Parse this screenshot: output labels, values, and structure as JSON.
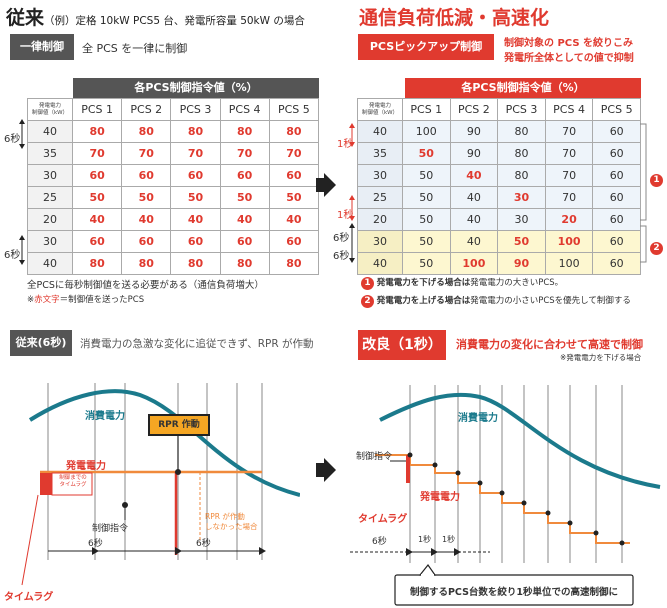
{
  "left": {
    "title": "従来",
    "subtitle": "（例）定格 10kW PCS5 台、発電所容量 50kW の場合",
    "tag": "一律制御",
    "tag_note": "全 PCS を一律に制御",
    "table_header": "各PCS制御指令値（%）",
    "row_label_lines": [
      "発電電力",
      "制御値（kW）"
    ],
    "columns": [
      "PCS 1",
      "PCS 2",
      "PCS 3",
      "PCS 4",
      "PCS 5"
    ],
    "rows": [
      {
        "kw": "40",
        "values": [
          "80",
          "80",
          "80",
          "80",
          "80"
        ]
      },
      {
        "kw": "35",
        "values": [
          "70",
          "70",
          "70",
          "70",
          "70"
        ]
      },
      {
        "kw": "30",
        "values": [
          "60",
          "60",
          "60",
          "60",
          "60"
        ]
      },
      {
        "kw": "25",
        "values": [
          "50",
          "50",
          "50",
          "50",
          "50"
        ]
      },
      {
        "kw": "20",
        "values": [
          "40",
          "40",
          "40",
          "40",
          "40"
        ]
      },
      {
        "kw": "30",
        "values": [
          "60",
          "60",
          "60",
          "60",
          "60"
        ]
      },
      {
        "kw": "40",
        "values": [
          "80",
          "80",
          "80",
          "80",
          "80"
        ]
      }
    ],
    "side_top": "6秒",
    "side_bottom": "6秒",
    "note1": "全PCSに毎秒制御値を送る必要がある（通信負荷増大）",
    "note2_prefix": "※",
    "note2_red": "赤文字",
    "note2_rest": "＝制御値を送ったPCS"
  },
  "right": {
    "title": "通信負荷低減・高速化",
    "tag": "PCSピックアップ制御",
    "tag_note_line1": "制御対象の PCS を絞りこみ",
    "tag_note_line2": "発電所全体としての値で抑制",
    "table_header": "各PCS制御指令値（%）",
    "row_label_lines": [
      "発電電力",
      "制御値（kW）"
    ],
    "columns": [
      "PCS 1",
      "PCS 2",
      "PCS 3",
      "PCS 4",
      "PCS 5"
    ],
    "rows": [
      {
        "kw": "40",
        "values": [
          "100",
          "90",
          "80",
          "70",
          "60"
        ],
        "red": []
      },
      {
        "kw": "35",
        "values": [
          "50",
          "90",
          "80",
          "70",
          "60"
        ],
        "red": [
          0
        ]
      },
      {
        "kw": "30",
        "values": [
          "50",
          "40",
          "80",
          "70",
          "60"
        ],
        "red": [
          1
        ]
      },
      {
        "kw": "25",
        "values": [
          "50",
          "40",
          "30",
          "70",
          "60"
        ],
        "red": [
          2
        ]
      },
      {
        "kw": "20",
        "values": [
          "50",
          "40",
          "30",
          "20",
          "60"
        ],
        "red": [
          3
        ]
      },
      {
        "kw": "30",
        "values": [
          "50",
          "40",
          "50",
          "100",
          "60"
        ],
        "red": [
          2,
          3
        ]
      },
      {
        "kw": "40",
        "values": [
          "50",
          "100",
          "90",
          "100",
          "60"
        ],
        "red": [
          1,
          2
        ]
      }
    ],
    "side_1": "1秒",
    "side_2": "1秒",
    "side_3": "6秒",
    "side_4": "6秒",
    "badge1": "1",
    "badge2": "2",
    "legend1_bold": "発電電力を下げる場合は",
    "legend1_rest": "発電電力の大きいPCS。",
    "legend2_bold": "発電電力を上げる場合は",
    "legend2_rest": "発電電力の小さいPCSを優先して制御する"
  },
  "bottom_left": {
    "tag": "従来(6秒)",
    "note": "消費電力の急激な変化に追従できず、RPR が作動",
    "consumption": "消費電力",
    "generation": "発電電力",
    "rpr": "RPR 作動",
    "lag_box_1": "制御までの",
    "lag_box_2": "タイムラグ",
    "rpr_note_1": "RPR が作動",
    "rpr_note_2": "しなかった場合",
    "command": "制御指令",
    "sec1": "6秒",
    "sec2": "6秒",
    "timelag": "タイムラグ"
  },
  "bottom_right": {
    "tag": "改良（1秒）",
    "note": "消費電力の変化に合わせて高速で制御",
    "subnote": "※発電電力を下げる場合",
    "consumption": "消費電力",
    "command": "制御指令",
    "generation": "発電電力",
    "timelag": "タイムラグ",
    "sec6": "6秒",
    "sec1a": "1秒",
    "sec1b": "1秒",
    "callout": "制御するPCS台数を絞り1秒単位での高速制御に"
  },
  "colors": {
    "red": "#e03a2f",
    "teal": "#1b7a8c",
    "orange": "#f08a3c",
    "dark": "#555555",
    "yellow": "#fdf7d0",
    "blue": "#eef4fa"
  }
}
